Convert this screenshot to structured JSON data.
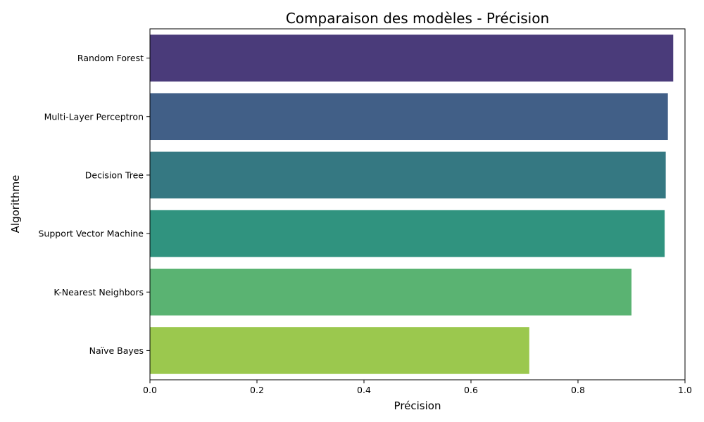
{
  "chart_data": {
    "type": "bar",
    "orientation": "horizontal",
    "title": "Comparaison des modèles - Précision",
    "xlabel": "Précision",
    "ylabel": "Algorithme",
    "xlim": [
      0,
      1.0
    ],
    "xticks": [
      "0.0",
      "0.2",
      "0.4",
      "0.6",
      "0.8",
      "1.0"
    ],
    "grid": false,
    "legend": "none",
    "categories": [
      "Random Forest",
      "Multi-Layer Perceptron",
      "Decision Tree",
      "Support Vector Machine",
      "K-Nearest Neighbors",
      "Naïve Bayes"
    ],
    "values": [
      0.978,
      0.968,
      0.964,
      0.962,
      0.9,
      0.709
    ],
    "colors": [
      "#4a3b7a",
      "#415f87",
      "#357882",
      "#30937f",
      "#5ab372",
      "#9bc84e"
    ]
  }
}
